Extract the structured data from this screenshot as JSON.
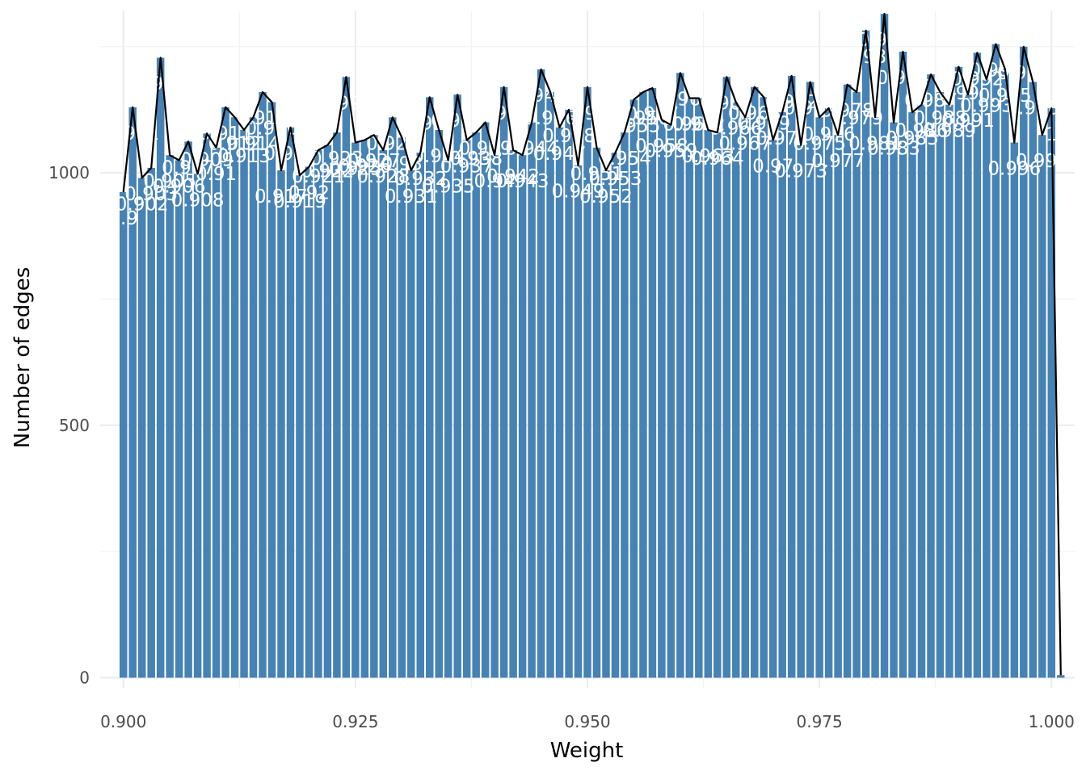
{
  "chart_data": {
    "type": "bar",
    "xlabel": "Weight",
    "ylabel": "Number of edges",
    "xlim": [
      0.8975,
      1.0025
    ],
    "ylim": [
      -20,
      1320
    ],
    "x_ticks": [
      0.9,
      0.925,
      0.95,
      0.975,
      1.0
    ],
    "x_tick_labels": [
      "0.900",
      "0.925",
      "0.950",
      "0.975",
      "1.000"
    ],
    "y_ticks": [
      0,
      500,
      1000
    ],
    "y_tick_labels": [
      "0",
      "500",
      "1000"
    ],
    "grid": true,
    "bar_color": "#4682b4",
    "line_color": "#000000",
    "bin_width": 0.001,
    "bins": [
      {
        "x": 0.9,
        "count": 962,
        "label": "0.9"
      },
      {
        "x": 0.901,
        "count": 1130,
        "label": "0.901"
      },
      {
        "x": 0.902,
        "count": 990,
        "label": "0.902"
      },
      {
        "x": 0.903,
        "count": 1010,
        "label": "0.903"
      },
      {
        "x": 0.904,
        "count": 1228,
        "label": "0.904"
      },
      {
        "x": 0.905,
        "count": 1035,
        "label": "0.905"
      },
      {
        "x": 0.906,
        "count": 1025,
        "label": "0.906"
      },
      {
        "x": 0.907,
        "count": 1062,
        "label": "0.907"
      },
      {
        "x": 0.908,
        "count": 998,
        "label": "0.908"
      },
      {
        "x": 0.909,
        "count": 1078,
        "label": "0.909"
      },
      {
        "x": 0.91,
        "count": 1050,
        "label": "0.91"
      },
      {
        "x": 0.911,
        "count": 1130,
        "label": "0.911"
      },
      {
        "x": 0.912,
        "count": 1110,
        "label": "0.912"
      },
      {
        "x": 0.913,
        "count": 1085,
        "label": "0.913"
      },
      {
        "x": 0.914,
        "count": 1110,
        "label": "0.914"
      },
      {
        "x": 0.915,
        "count": 1160,
        "label": "0.915"
      },
      {
        "x": 0.916,
        "count": 1140,
        "label": "0.916"
      },
      {
        "x": 0.917,
        "count": 1005,
        "label": "0.917"
      },
      {
        "x": 0.918,
        "count": 1090,
        "label": "0.918"
      },
      {
        "x": 0.919,
        "count": 995,
        "label": "0.919"
      },
      {
        "x": 0.92,
        "count": 1012,
        "label": "0.92"
      },
      {
        "x": 0.921,
        "count": 1045,
        "label": "0.921"
      },
      {
        "x": 0.922,
        "count": 1055,
        "label": "0.922"
      },
      {
        "x": 0.923,
        "count": 1080,
        "label": "0.923"
      },
      {
        "x": 0.924,
        "count": 1190,
        "label": "0.924"
      },
      {
        "x": 0.925,
        "count": 1060,
        "label": "0.925"
      },
      {
        "x": 0.926,
        "count": 1065,
        "label": "0.926"
      },
      {
        "x": 0.927,
        "count": 1075,
        "label": "0.927"
      },
      {
        "x": 0.928,
        "count": 1045,
        "label": "0.928"
      },
      {
        "x": 0.929,
        "count": 1110,
        "label": "0.929"
      },
      {
        "x": 0.93,
        "count": 1070,
        "label": "0.93"
      },
      {
        "x": 0.931,
        "count": 1005,
        "label": "0.931"
      },
      {
        "x": 0.932,
        "count": 1040,
        "label": "0.932"
      },
      {
        "x": 0.933,
        "count": 1150,
        "label": "0.933"
      },
      {
        "x": 0.934,
        "count": 1085,
        "label": "0.934"
      },
      {
        "x": 0.935,
        "count": 1025,
        "label": "0.935"
      },
      {
        "x": 0.936,
        "count": 1155,
        "label": "0.936"
      },
      {
        "x": 0.937,
        "count": 1065,
        "label": "0.937"
      },
      {
        "x": 0.938,
        "count": 1080,
        "label": "0.938"
      },
      {
        "x": 0.939,
        "count": 1100,
        "label": "0.939"
      },
      {
        "x": 0.94,
        "count": 1035,
        "label": "0.94"
      },
      {
        "x": 0.941,
        "count": 1170,
        "label": "0.941"
      },
      {
        "x": 0.942,
        "count": 1045,
        "label": "0.942"
      },
      {
        "x": 0.943,
        "count": 1035,
        "label": "0.943"
      },
      {
        "x": 0.944,
        "count": 1100,
        "label": "0.944"
      },
      {
        "x": 0.945,
        "count": 1205,
        "label": "0.945"
      },
      {
        "x": 0.946,
        "count": 1160,
        "label": "0.946"
      },
      {
        "x": 0.947,
        "count": 1090,
        "label": "0.947"
      },
      {
        "x": 0.948,
        "count": 1125,
        "label": "0.948"
      },
      {
        "x": 0.949,
        "count": 1015,
        "label": "0.949"
      },
      {
        "x": 0.95,
        "count": 1170,
        "label": "0.95"
      },
      {
        "x": 0.951,
        "count": 1050,
        "label": "0.951"
      },
      {
        "x": 0.952,
        "count": 1005,
        "label": "0.952"
      },
      {
        "x": 0.953,
        "count": 1040,
        "label": "0.953"
      },
      {
        "x": 0.954,
        "count": 1080,
        "label": "0.954"
      },
      {
        "x": 0.955,
        "count": 1145,
        "label": "0.955"
      },
      {
        "x": 0.956,
        "count": 1160,
        "label": "0.956"
      },
      {
        "x": 0.957,
        "count": 1168,
        "label": "0.957"
      },
      {
        "x": 0.958,
        "count": 1105,
        "label": "0.958"
      },
      {
        "x": 0.959,
        "count": 1095,
        "label": "0.959"
      },
      {
        "x": 0.96,
        "count": 1198,
        "label": "0.96"
      },
      {
        "x": 0.961,
        "count": 1148,
        "label": "0.961"
      },
      {
        "x": 0.962,
        "count": 1148,
        "label": "0.962"
      },
      {
        "x": 0.963,
        "count": 1085,
        "label": "0.963"
      },
      {
        "x": 0.964,
        "count": 1080,
        "label": "0.964"
      },
      {
        "x": 0.965,
        "count": 1190,
        "label": "0.965"
      },
      {
        "x": 0.966,
        "count": 1140,
        "label": "0.966"
      },
      {
        "x": 0.967,
        "count": 1110,
        "label": "0.967"
      },
      {
        "x": 0.968,
        "count": 1170,
        "label": "0.968"
      },
      {
        "x": 0.969,
        "count": 1150,
        "label": "0.969"
      },
      {
        "x": 0.97,
        "count": 1065,
        "label": "0.97"
      },
      {
        "x": 0.971,
        "count": 1120,
        "label": "0.971"
      },
      {
        "x": 0.972,
        "count": 1192,
        "label": "0.972"
      },
      {
        "x": 0.973,
        "count": 1055,
        "label": "0.973"
      },
      {
        "x": 0.974,
        "count": 1180,
        "label": "0.974"
      },
      {
        "x": 0.975,
        "count": 1110,
        "label": "0.975"
      },
      {
        "x": 0.976,
        "count": 1128,
        "label": "0.976"
      },
      {
        "x": 0.977,
        "count": 1075,
        "label": "0.977"
      },
      {
        "x": 0.978,
        "count": 1175,
        "label": "0.978"
      },
      {
        "x": 0.979,
        "count": 1160,
        "label": "0.979"
      },
      {
        "x": 0.98,
        "count": 1282,
        "label": "0.98"
      },
      {
        "x": 0.981,
        "count": 1110,
        "label": "0.981"
      },
      {
        "x": 0.982,
        "count": 1315,
        "label": "0.982"
      },
      {
        "x": 0.983,
        "count": 1100,
        "label": "0.983"
      },
      {
        "x": 0.984,
        "count": 1240,
        "label": "0.984"
      },
      {
        "x": 0.985,
        "count": 1120,
        "label": "0.985"
      },
      {
        "x": 0.986,
        "count": 1135,
        "label": "0.986"
      },
      {
        "x": 0.987,
        "count": 1195,
        "label": "0.987"
      },
      {
        "x": 0.988,
        "count": 1160,
        "label": "0.988"
      },
      {
        "x": 0.989,
        "count": 1135,
        "label": "0.989"
      },
      {
        "x": 0.99,
        "count": 1210,
        "label": "0.99"
      },
      {
        "x": 0.991,
        "count": 1155,
        "label": "0.991"
      },
      {
        "x": 0.992,
        "count": 1238,
        "label": "0.992"
      },
      {
        "x": 0.993,
        "count": 1185,
        "label": "0.993"
      },
      {
        "x": 0.994,
        "count": 1255,
        "label": "0.994"
      },
      {
        "x": 0.995,
        "count": 1205,
        "label": "0.995"
      },
      {
        "x": 0.996,
        "count": 1060,
        "label": "0.996"
      },
      {
        "x": 0.997,
        "count": 1250,
        "label": "0.997"
      },
      {
        "x": 0.998,
        "count": 1180,
        "label": "0.998"
      },
      {
        "x": 0.999,
        "count": 1075,
        "label": "0.999"
      },
      {
        "x": 1.0,
        "count": 1128,
        "label": "1"
      },
      {
        "x": 1.001,
        "count": 5,
        "label": ""
      }
    ]
  }
}
